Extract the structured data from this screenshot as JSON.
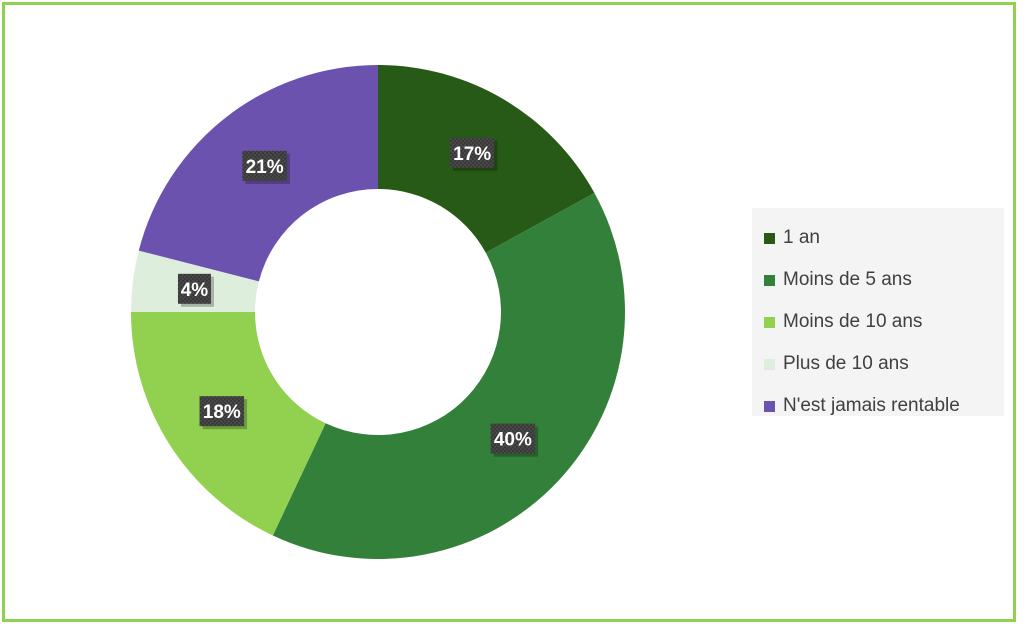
{
  "chart_data": {
    "type": "donut",
    "title": "",
    "categories": [
      "1 an",
      "Moins de 5 ans",
      "Moins de 10 ans",
      "Plus de 10 ans",
      "N'est jamais rentable"
    ],
    "values": [
      17,
      40,
      18,
      4,
      21
    ],
    "value_labels": [
      "17%",
      "40%",
      "18%",
      "4%",
      "21%"
    ],
    "unit": "%",
    "colors": [
      "#285a17",
      "#33803a",
      "#92d050",
      "#ddeedd",
      "#6b52ae"
    ],
    "legend_position": "right",
    "frame_color": "#92d050"
  }
}
